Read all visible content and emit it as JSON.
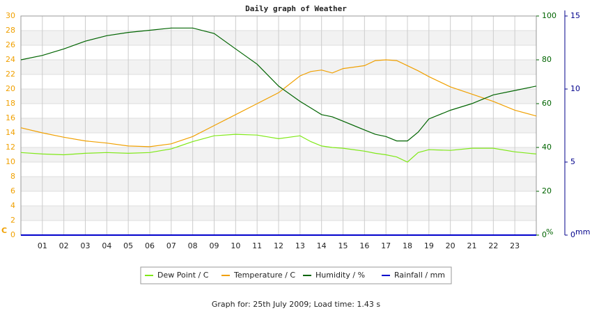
{
  "chart_data": {
    "type": "line",
    "title": "Daily graph of Weather",
    "footer": "Graph for: 25th July 2009; Load time: 1.43 s",
    "y_label": "C",
    "y2_label": "%",
    "y3_label": "mm",
    "x": [
      0,
      1,
      2,
      3,
      4,
      5,
      6,
      7,
      8,
      9,
      10,
      11,
      12,
      13,
      13.5,
      14,
      14.5,
      15,
      16,
      16.5,
      17,
      17.5,
      18,
      18.5,
      19,
      20,
      21,
      21.5,
      22,
      23,
      24
    ],
    "xlim": [
      0,
      24
    ],
    "xticks": [
      {
        "value": 1,
        "label": "01"
      },
      {
        "value": 2,
        "label": "02"
      },
      {
        "value": 3,
        "label": "03"
      },
      {
        "value": 4,
        "label": "04"
      },
      {
        "value": 5,
        "label": "05"
      },
      {
        "value": 6,
        "label": "06"
      },
      {
        "value": 7,
        "label": "07"
      },
      {
        "value": 8,
        "label": "08"
      },
      {
        "value": 9,
        "label": "09"
      },
      10,
      11,
      12,
      13,
      14,
      15,
      16,
      17,
      18,
      19,
      20,
      21,
      22,
      23
    ],
    "ylim": [
      0,
      30
    ],
    "yticks": [
      0,
      2,
      4,
      6,
      8,
      10,
      12,
      14,
      16,
      18,
      20,
      22,
      24,
      26,
      28,
      30
    ],
    "y_color": "#f0a000",
    "y2lim": [
      0,
      100
    ],
    "y2ticks": [
      0,
      20,
      40,
      60,
      80,
      100
    ],
    "y2_color": "#006400",
    "y3lim": [
      0,
      15
    ],
    "y3ticks": [
      0,
      5,
      10,
      15
    ],
    "y3_color": "#00008b",
    "grid": true,
    "series": [
      {
        "name": "Dew Point / C",
        "color": "#7fe817",
        "axis": "y",
        "values": [
          11.3,
          11.1,
          11.0,
          11.2,
          11.3,
          11.2,
          11.3,
          11.8,
          12.8,
          13.6,
          13.8,
          13.7,
          13.2,
          13.6,
          12.8,
          12.2,
          12.0,
          11.9,
          11.5,
          11.2,
          11.0,
          10.7,
          10.0,
          11.3,
          11.7,
          11.6,
          11.9,
          11.9,
          11.9,
          11.4,
          11.1
        ]
      },
      {
        "name": "Temperature / C",
        "color": "#f0a000",
        "axis": "y",
        "values": [
          14.7,
          14.0,
          13.4,
          12.9,
          12.6,
          12.2,
          12.1,
          12.5,
          13.5,
          15.0,
          16.5,
          18.0,
          19.5,
          21.8,
          22.4,
          22.6,
          22.2,
          22.8,
          23.2,
          23.9,
          24.0,
          23.9,
          23.2,
          22.5,
          21.7,
          20.3,
          19.3,
          18.8,
          18.3,
          17.1,
          16.3
        ]
      },
      {
        "name": "Humidity / %",
        "color": "#006400",
        "axis": "y2",
        "values": [
          80,
          82,
          85,
          88.5,
          91,
          92.5,
          93.5,
          94.5,
          94.5,
          92,
          85,
          78,
          68,
          61,
          58,
          55,
          54,
          52,
          48,
          46,
          45,
          43,
          43,
          47,
          53,
          57,
          60,
          62,
          64,
          66,
          68
        ]
      },
      {
        "name": "Rainfall / mm",
        "color": "#0000cc",
        "axis": "y3",
        "values": [
          0,
          0,
          0,
          0,
          0,
          0,
          0,
          0,
          0,
          0,
          0,
          0,
          0,
          0,
          0,
          0,
          0,
          0,
          0,
          0,
          0,
          0,
          0,
          0,
          0,
          0,
          0,
          0,
          0,
          0,
          0
        ]
      }
    ]
  }
}
